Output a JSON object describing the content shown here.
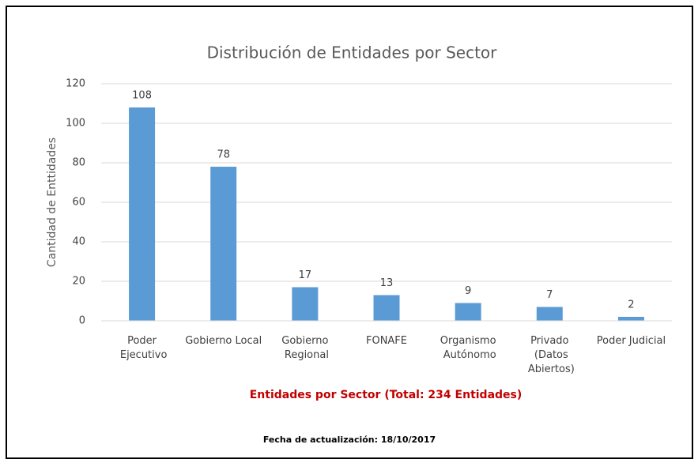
{
  "chart_data": {
    "type": "bar",
    "title": "Distribución de Entidades por Sector",
    "y_label": "Cantidad de Enttidades",
    "x_label": "Entidades por Sector (Total: 234 Entidades)",
    "footnote": "Fecha de actualización: 18/10/2017",
    "categories": [
      "Poder Ejecutivo",
      "Gobierno Local",
      "Gobierno Regional",
      "FONAFE",
      "Organismo Autónomo",
      "Privado (Datos Abiertos)",
      "Poder Judicial"
    ],
    "values": [
      108,
      78,
      17,
      13,
      9,
      7,
      2
    ],
    "color": "#5b9bd5",
    "ylim": [
      0,
      120
    ],
    "yticks": [
      0,
      20,
      40,
      60,
      80,
      100,
      120
    ],
    "grid": true
  }
}
